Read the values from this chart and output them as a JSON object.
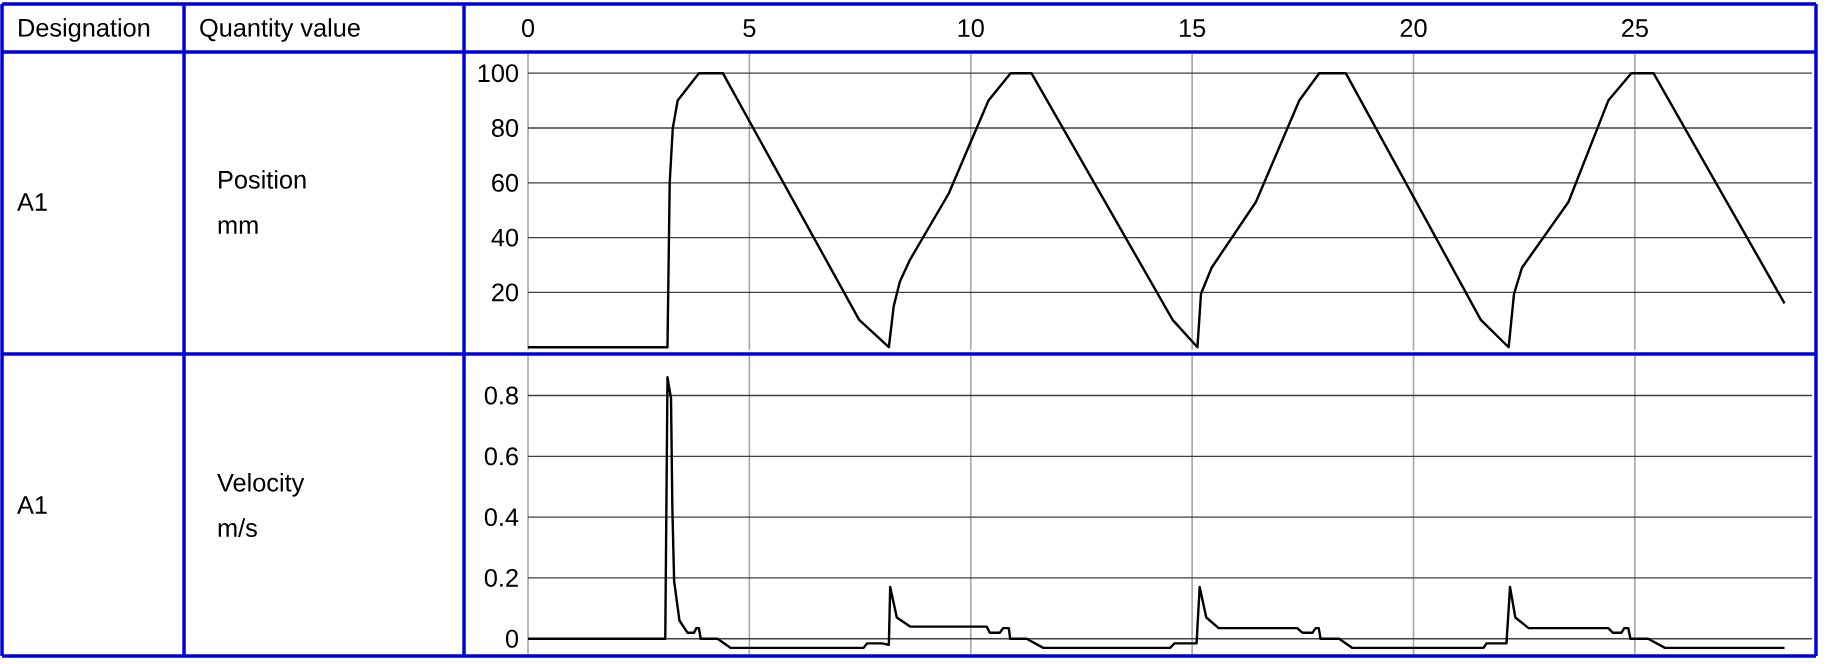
{
  "chart_data": [
    {
      "type": "line",
      "ylabel": "Position mm",
      "annotations": [
        "Designation",
        "Quantity value",
        "A1"
      ],
      "color": "#000000",
      "grid": true,
      "xlim": [
        0,
        29
      ],
      "xticks": [
        0,
        5,
        10,
        15,
        20,
        25
      ],
      "ylim": [
        -1,
        107
      ],
      "yticks": [
        20,
        40,
        60,
        80,
        100
      ],
      "x": [
        0,
        3.15,
        3.2,
        3.27,
        3.38,
        3.86,
        4.4,
        7.48,
        8.15,
        8.26,
        8.4,
        8.63,
        9.5,
        10.4,
        10.9,
        11.37,
        14.56,
        15.12,
        15.2,
        15.44,
        16.44,
        17.42,
        17.87,
        18.47,
        21.52,
        22.15,
        22.27,
        22.45,
        23.5,
        24.4,
        24.92,
        25.42,
        28.38
      ],
      "values": [
        0,
        0,
        60,
        80,
        90,
        100,
        100,
        10,
        0,
        15,
        24,
        32,
        56,
        90,
        100,
        100,
        10,
        0,
        19.5,
        29,
        53,
        90,
        100,
        100,
        10,
        0,
        19.5,
        29,
        53,
        90,
        100,
        100,
        16
      ]
    },
    {
      "type": "line",
      "ylabel": "Velocity m/s",
      "annotations": [
        "A1"
      ],
      "color": "#000000",
      "grid": true,
      "tick_labels": "y",
      "xlim": [
        0,
        29
      ],
      "xticks": [
        0,
        5,
        10,
        15,
        20,
        25
      ],
      "ylim": [
        -0.05,
        0.93
      ],
      "yticks": [
        0,
        0.2,
        0.4,
        0.6,
        0.8
      ],
      "x": [
        0,
        3.1,
        3.15,
        3.23,
        3.26,
        3.3,
        3.42,
        3.6,
        3.75,
        3.8,
        3.86,
        3.9,
        4.28,
        4.58,
        7.58,
        7.66,
        8.0,
        8.15,
        8.18,
        8.33,
        8.63,
        10.36,
        10.43,
        10.66,
        10.73,
        10.86,
        10.89,
        11.26,
        11.64,
        14.5,
        14.6,
        15.1,
        15.17,
        15.32,
        15.6,
        17.37,
        17.49,
        17.72,
        17.79,
        17.86,
        17.9,
        18.32,
        18.62,
        21.58,
        21.65,
        22.1,
        22.18,
        22.3,
        22.6,
        24.4,
        24.5,
        24.7,
        24.76,
        24.85,
        24.9,
        25.3,
        25.68,
        28.38
      ],
      "values": [
        0,
        0,
        0.86,
        0.79,
        0.43,
        0.19,
        0.06,
        0.02,
        0.02,
        0.035,
        0.035,
        0,
        0,
        -0.03,
        -0.03,
        -0.015,
        -0.015,
        -0.02,
        0.17,
        0.07,
        0.04,
        0.04,
        0.02,
        0.02,
        0.035,
        0.035,
        0,
        0,
        -0.03,
        -0.03,
        -0.015,
        -0.015,
        0.17,
        0.07,
        0.035,
        0.035,
        0.02,
        0.02,
        0.035,
        0.035,
        0,
        0,
        -0.03,
        -0.03,
        -0.015,
        -0.015,
        0.17,
        0.07,
        0.035,
        0.035,
        0.02,
        0.02,
        0.035,
        0.035,
        0,
        0,
        -0.03,
        -0.03
      ]
    }
  ]
}
